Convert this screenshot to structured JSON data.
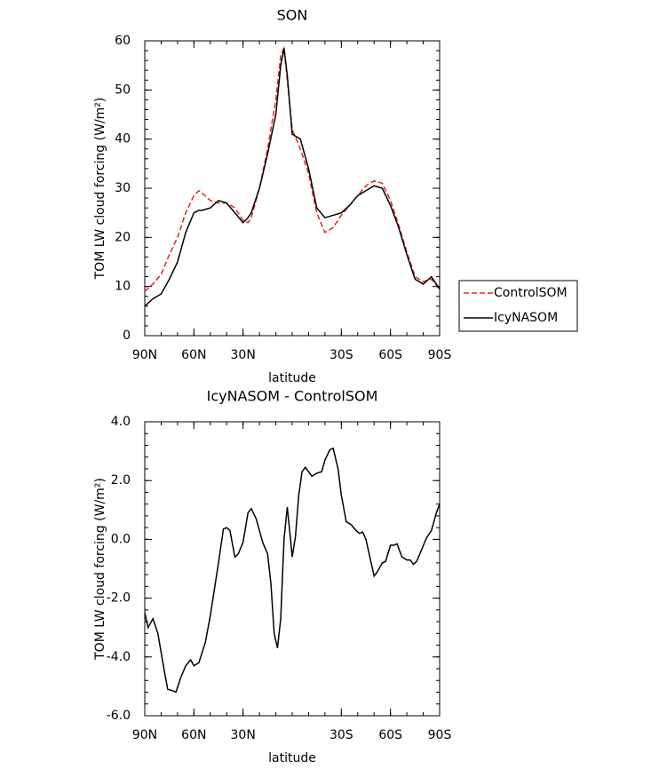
{
  "chart_data": [
    {
      "type": "line",
      "title": "SON",
      "xlabel": "latitude",
      "ylabel": "TOM LW cloud forcing (W/m²)",
      "x": [
        90,
        85,
        80,
        75,
        70,
        65,
        60,
        57,
        55,
        50,
        45,
        40,
        35,
        30,
        27,
        25,
        20,
        15,
        10,
        7,
        5,
        3,
        0,
        -5,
        -10,
        -15,
        -20,
        -25,
        -30,
        -35,
        -40,
        -45,
        -50,
        -55,
        -60,
        -65,
        -70,
        -75,
        -80,
        -85,
        -90
      ],
      "series": [
        {
          "name": "ControlSOM",
          "color": "#e8231f",
          "linestyle": "dashed",
          "values": [
            9,
            10.5,
            12.5,
            16.5,
            20,
            25,
            28.5,
            29.5,
            29,
            27.5,
            27,
            27,
            26,
            23.5,
            23,
            24,
            30,
            38,
            48,
            57,
            58.5,
            52,
            42,
            38,
            33,
            25,
            21,
            22,
            24.5,
            26.5,
            28.5,
            30.5,
            31.5,
            31,
            27.5,
            22.5,
            17,
            12,
            11,
            11.5,
            9.5
          ]
        },
        {
          "name": "IcyNASOM",
          "color": "#000000",
          "linestyle": "solid",
          "values": [
            6,
            7.5,
            8.5,
            11.5,
            15,
            21,
            25,
            25.5,
            25.5,
            26,
            27.5,
            27,
            25,
            23,
            24,
            25,
            30,
            37,
            45,
            55,
            58.5,
            53,
            41,
            40,
            34,
            26,
            24,
            24.5,
            25,
            26.5,
            28.5,
            29.5,
            30.5,
            30,
            26.5,
            22,
            16.5,
            11.5,
            10.5,
            12,
            9.5
          ]
        }
      ],
      "xlim": [
        90,
        -90
      ],
      "xticks": [
        {
          "value": 90,
          "label": "90N"
        },
        {
          "value": 60,
          "label": "60N"
        },
        {
          "value": 30,
          "label": "30N"
        },
        {
          "value": -30,
          "label": "30S"
        },
        {
          "value": -60,
          "label": "60S"
        },
        {
          "value": -90,
          "label": "90S"
        }
      ],
      "ylim": [
        0,
        60
      ],
      "yticks": [
        0,
        10,
        20,
        30,
        40,
        50,
        60
      ],
      "legend": "right"
    },
    {
      "type": "line",
      "title": "IcyNASOM - ControlSOM",
      "xlabel": "latitude",
      "ylabel": "TOM LW cloud forcing (W/m²)",
      "x": [
        90,
        88,
        85,
        82,
        78,
        76,
        73,
        71,
        68,
        65,
        62,
        60,
        57,
        53,
        50,
        45,
        42,
        40,
        38,
        35,
        33,
        30,
        27,
        25,
        22,
        18,
        15,
        13,
        11,
        9,
        7,
        5,
        3,
        1,
        0,
        -2,
        -4,
        -6,
        -8,
        -10,
        -12,
        -15,
        -18,
        -20,
        -23,
        -25,
        -28,
        -30,
        -33,
        -36,
        -39,
        -41,
        -43,
        -45,
        -47,
        -50,
        -52,
        -55,
        -57,
        -60,
        -62,
        -64,
        -67,
        -70,
        -72,
        -74,
        -76,
        -79,
        -82,
        -85,
        -88,
        -90
      ],
      "series": [
        {
          "name": "IcyNASOM - ControlSOM",
          "color": "#000000",
          "linestyle": "solid",
          "values": [
            -2.5,
            -3,
            -2.7,
            -3.2,
            -4.5,
            -5.1,
            -5.15,
            -5.2,
            -4.7,
            -4.3,
            -4.1,
            -4.3,
            -4.2,
            -3.5,
            -2.6,
            -0.8,
            0.35,
            0.4,
            0.3,
            -0.6,
            -0.5,
            -0.1,
            0.9,
            1.05,
            0.7,
            -0.1,
            -0.5,
            -1.5,
            -3.2,
            -3.7,
            -2.7,
            0,
            1.1,
            0,
            -0.6,
            0.1,
            1.5,
            2.3,
            2.45,
            2.3,
            2.15,
            2.25,
            2.3,
            2.7,
            3.05,
            3.1,
            2.4,
            1.5,
            0.6,
            0.5,
            0.3,
            0.2,
            0.25,
            0,
            -0.5,
            -1.25,
            -1.1,
            -0.8,
            -0.75,
            -0.2,
            -0.2,
            -0.15,
            -0.6,
            -0.7,
            -0.7,
            -0.85,
            -0.75,
            -0.35,
            0.05,
            0.3,
            0.9,
            1.2
          ]
        }
      ],
      "xlim": [
        90,
        -90
      ],
      "xticks": [
        {
          "value": 90,
          "label": "90N"
        },
        {
          "value": 60,
          "label": "60N"
        },
        {
          "value": 30,
          "label": "30N"
        },
        {
          "value": -30,
          "label": "30S"
        },
        {
          "value": -60,
          "label": "60S"
        },
        {
          "value": -90,
          "label": "90S"
        }
      ],
      "ylim": [
        -6,
        4
      ],
      "yticks": [
        {
          "value": -6,
          "label": "-6.0"
        },
        {
          "value": -4,
          "label": "-4.0"
        },
        {
          "value": -2,
          "label": "-2.0"
        },
        {
          "value": 0,
          "label": "0.0"
        },
        {
          "value": 2,
          "label": "2.0"
        },
        {
          "value": 4,
          "label": "4.0"
        }
      ]
    }
  ]
}
